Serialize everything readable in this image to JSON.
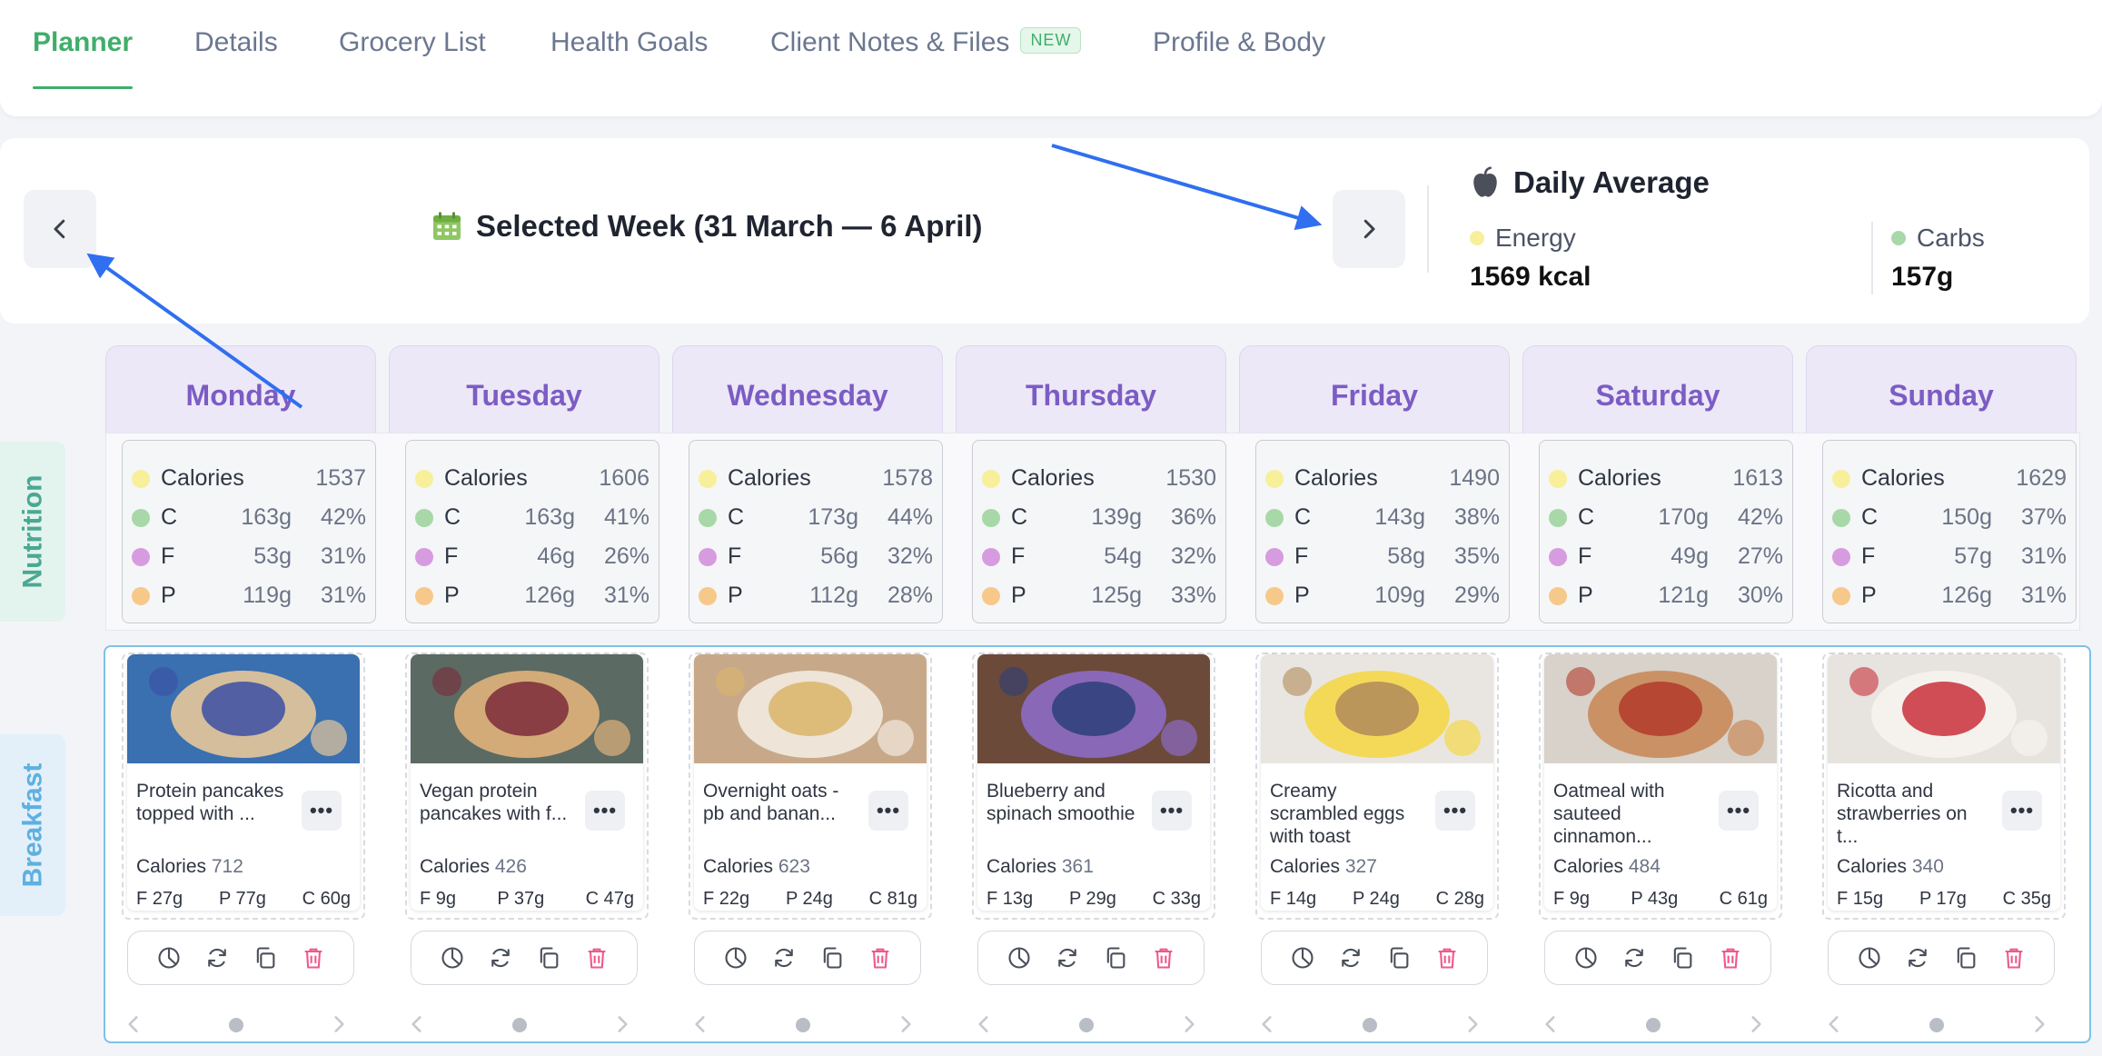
{
  "tabs": [
    {
      "label": "Planner",
      "active": true
    },
    {
      "label": "Details"
    },
    {
      "label": "Grocery List"
    },
    {
      "label": "Health Goals"
    },
    {
      "label": "Client Notes & Files",
      "badge": "NEW"
    },
    {
      "label": "Profile & Body"
    }
  ],
  "week": {
    "title": "Selected Week (31 March — 6 April)"
  },
  "daily_average": {
    "title": "Daily Average",
    "energy_label": "Energy",
    "energy_value": "1569 kcal",
    "carbs_label": "Carbs",
    "carbs_value": "157g"
  },
  "sections": {
    "nutrition": "Nutrition",
    "breakfast": "Breakfast"
  },
  "nutrition_labels": {
    "calories": "Calories",
    "c": "C",
    "f": "F",
    "p": "P"
  },
  "meal_labels": {
    "calories": "Calories",
    "more": "•••"
  },
  "days": [
    {
      "name": "Monday",
      "calories": "1537",
      "c_g": "163g",
      "c_pct": "42%",
      "f_g": "53g",
      "f_pct": "31%",
      "p_g": "119g",
      "p_pct": "31%",
      "meal": {
        "title": "Protein pancakes topped with ...",
        "calories": "712",
        "f": "F 27g",
        "p": "P 77g",
        "c": "C 60g"
      }
    },
    {
      "name": "Tuesday",
      "calories": "1606",
      "c_g": "163g",
      "c_pct": "41%",
      "f_g": "46g",
      "f_pct": "26%",
      "p_g": "126g",
      "p_pct": "31%",
      "meal": {
        "title": "Vegan protein pancakes with f...",
        "calories": "426",
        "f": "F 9g",
        "p": "P 37g",
        "c": "C 47g"
      }
    },
    {
      "name": "Wednesday",
      "calories": "1578",
      "c_g": "173g",
      "c_pct": "44%",
      "f_g": "56g",
      "f_pct": "32%",
      "p_g": "112g",
      "p_pct": "28%",
      "meal": {
        "title": "Overnight oats - pb and banan...",
        "calories": "623",
        "f": "F 22g",
        "p": "P 24g",
        "c": "C 81g"
      }
    },
    {
      "name": "Thursday",
      "calories": "1530",
      "c_g": "139g",
      "c_pct": "36%",
      "f_g": "54g",
      "f_pct": "32%",
      "p_g": "125g",
      "p_pct": "33%",
      "meal": {
        "title": "Blueberry and spinach smoothie",
        "calories": "361",
        "f": "F 13g",
        "p": "P 29g",
        "c": "C 33g"
      }
    },
    {
      "name": "Friday",
      "calories": "1490",
      "c_g": "143g",
      "c_pct": "38%",
      "f_g": "58g",
      "f_pct": "35%",
      "p_g": "109g",
      "p_pct": "29%",
      "meal": {
        "title": "Creamy scrambled eggs with toast",
        "calories": "327",
        "f": "F 14g",
        "p": "P 24g",
        "c": "C 28g"
      }
    },
    {
      "name": "Saturday",
      "calories": "1613",
      "c_g": "170g",
      "c_pct": "42%",
      "f_g": "49g",
      "f_pct": "27%",
      "p_g": "121g",
      "p_pct": "30%",
      "meal": {
        "title": "Oatmeal with sauteed cinnamon...",
        "calories": "484",
        "f": "F 9g",
        "p": "P 43g",
        "c": "C 61g"
      }
    },
    {
      "name": "Sunday",
      "calories": "1629",
      "c_g": "150g",
      "c_pct": "37%",
      "f_g": "57g",
      "f_pct": "31%",
      "p_g": "126g",
      "p_pct": "31%",
      "meal": {
        "title": "Ricotta and strawberries on t...",
        "calories": "340",
        "f": "F 15g",
        "p": "P 17g",
        "c": "C 35g"
      }
    }
  ],
  "colors": {
    "accent_green": "#3fae6a",
    "day_header_purple": "#7c5cc4",
    "annotation_arrow": "#2f6ff0"
  }
}
